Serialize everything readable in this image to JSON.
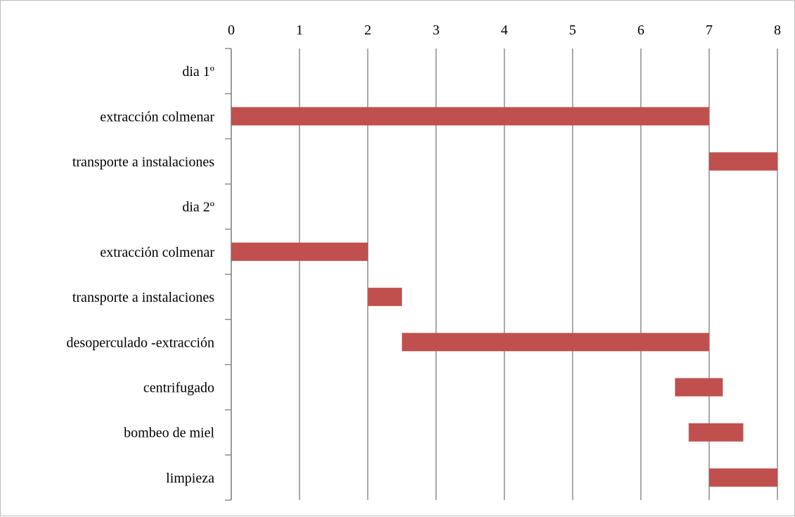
{
  "chart_data": {
    "type": "bar",
    "orientation": "horizontal-gantt",
    "title": "",
    "xlabel": "",
    "ylabel": "",
    "xlim": [
      0,
      8
    ],
    "x_ticks": [
      "0",
      "1",
      "2",
      "3",
      "4",
      "5",
      "6",
      "7",
      "8"
    ],
    "x_axis_position": "top",
    "grid": true,
    "legend": "none",
    "bar_color": "#c0504d",
    "categories": [
      "dia 1º",
      "extracción colmenar",
      "transporte a instalaciones",
      "dia 2º",
      "extracción colmenar",
      "transporte a instalaciones",
      "desoperculado -extracción",
      "centrifugado",
      "bombeo de miel",
      "limpieza"
    ],
    "bars": [
      {
        "start": null,
        "end": null
      },
      {
        "start": 0,
        "end": 7
      },
      {
        "start": 7,
        "end": 8
      },
      {
        "start": null,
        "end": null
      },
      {
        "start": 0,
        "end": 2
      },
      {
        "start": 2,
        "end": 2.5
      },
      {
        "start": 2.5,
        "end": 7
      },
      {
        "start": 6.5,
        "end": 7.2
      },
      {
        "start": 6.7,
        "end": 7.5
      },
      {
        "start": 7,
        "end": 8
      }
    ]
  }
}
